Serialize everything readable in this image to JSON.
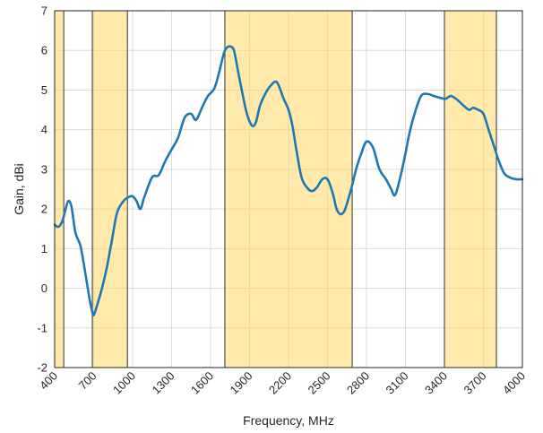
{
  "chart_data": {
    "type": "line",
    "title": "",
    "xlabel": "Frequency, MHz",
    "ylabel": "Gain, dBi",
    "xlim": [
      400,
      4000
    ],
    "ylim": [
      -2,
      7
    ],
    "x_ticks": [
      400,
      700,
      1000,
      1300,
      1600,
      1900,
      2200,
      2500,
      2800,
      3100,
      3400,
      3700,
      4000
    ],
    "y_ticks": [
      -2,
      -1,
      0,
      1,
      2,
      3,
      4,
      5,
      6,
      7
    ],
    "grid": true,
    "line_color": "#1f77b4",
    "band_color": "#ffd966",
    "shaded_bands": [
      {
        "x_start": 400,
        "x_end": 470
      },
      {
        "x_start": 690,
        "x_end": 960
      },
      {
        "x_start": 1710,
        "x_end": 2690
      },
      {
        "x_start": 3400,
        "x_end": 3800
      }
    ],
    "series": [
      {
        "x": [
          400,
          430,
          460,
          480,
          505,
          530,
          560,
          600,
          640,
          670,
          690,
          700,
          720,
          760,
          800,
          840,
          880,
          930,
          970,
          1000,
          1030,
          1060,
          1090,
          1150,
          1200,
          1250,
          1300,
          1350,
          1400,
          1450,
          1480,
          1500,
          1540,
          1580,
          1630,
          1670,
          1700,
          1720,
          1750,
          1780,
          1810,
          1840,
          1880,
          1920,
          1950,
          1980,
          2020,
          2060,
          2110,
          2160,
          2200,
          2230,
          2260,
          2300,
          2340,
          2380,
          2420,
          2460,
          2500,
          2540,
          2570,
          2600,
          2630,
          2660,
          2690,
          2720,
          2760,
          2800,
          2850,
          2900,
          2950,
          2990,
          3020,
          3060,
          3100,
          3130,
          3170,
          3220,
          3270,
          3320,
          3370,
          3410,
          3450,
          3500,
          3550,
          3590,
          3620,
          3660,
          3700,
          3740,
          3780,
          3820,
          3860,
          3900,
          3950,
          4000
        ],
        "y": [
          1.6,
          1.55,
          1.7,
          1.95,
          2.2,
          2.05,
          1.4,
          1.05,
          0.3,
          -0.3,
          -0.6,
          -0.68,
          -0.5,
          -0.05,
          0.5,
          1.2,
          1.9,
          2.2,
          2.3,
          2.32,
          2.2,
          2.0,
          2.3,
          2.8,
          2.85,
          3.2,
          3.5,
          3.8,
          4.3,
          4.4,
          4.25,
          4.3,
          4.6,
          4.85,
          5.05,
          5.5,
          5.9,
          6.05,
          6.1,
          6.0,
          5.5,
          5.0,
          4.4,
          4.1,
          4.2,
          4.6,
          4.9,
          5.1,
          5.2,
          4.8,
          4.5,
          4.1,
          3.5,
          2.8,
          2.55,
          2.45,
          2.55,
          2.75,
          2.75,
          2.4,
          2.0,
          1.87,
          1.95,
          2.25,
          2.6,
          3.0,
          3.4,
          3.7,
          3.55,
          3.0,
          2.75,
          2.5,
          2.35,
          2.8,
          3.4,
          3.9,
          4.4,
          4.85,
          4.9,
          4.85,
          4.8,
          4.78,
          4.85,
          4.75,
          4.6,
          4.5,
          4.55,
          4.5,
          4.4,
          4.0,
          3.6,
          3.2,
          2.9,
          2.8,
          2.75,
          2.75
        ]
      }
    ]
  }
}
